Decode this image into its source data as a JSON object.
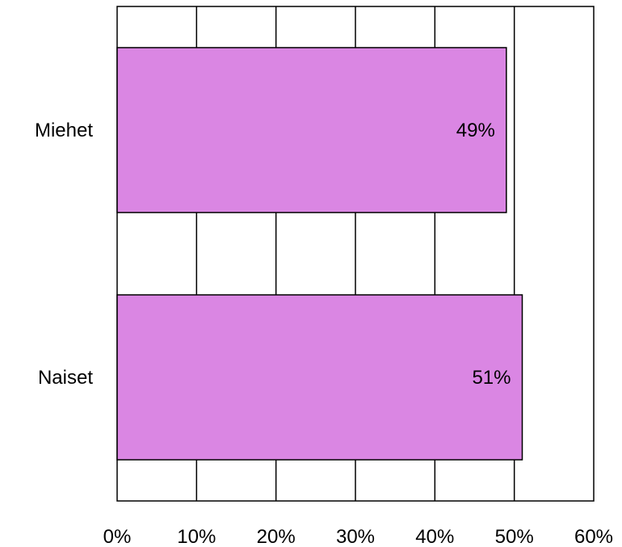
{
  "chart_data": {
    "type": "bar",
    "orientation": "horizontal",
    "categories": [
      "Miehet",
      "Naiset"
    ],
    "values": [
      49,
      51
    ],
    "data_labels": [
      "49%",
      "51%"
    ],
    "bar_color": "#da86e3",
    "x_ticks": [
      "0%",
      "10%",
      "20%",
      "30%",
      "40%",
      "50%",
      "60%"
    ],
    "xlim": [
      0,
      60
    ],
    "grid": "vertical",
    "legend": "none",
    "title": "",
    "xlabel": "",
    "ylabel": ""
  }
}
